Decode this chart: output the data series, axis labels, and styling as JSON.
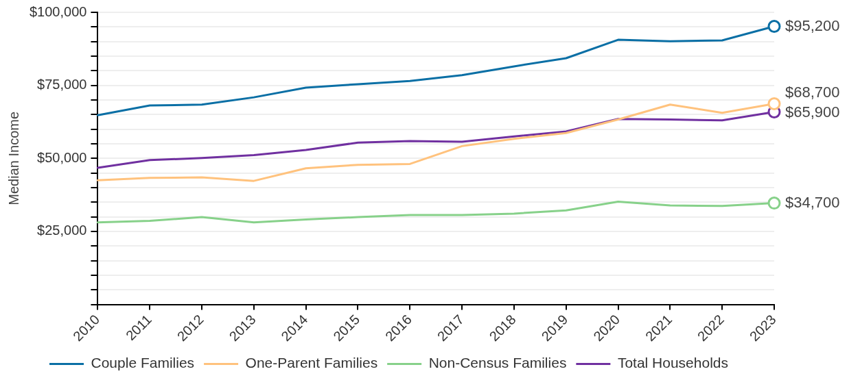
{
  "chart_data": {
    "type": "line",
    "ylabel": "Median Income",
    "categories": [
      "2010",
      "2011",
      "2012",
      "2013",
      "2014",
      "2015",
      "2016",
      "2017",
      "2018",
      "2019",
      "2020",
      "2021",
      "2022",
      "2023"
    ],
    "series": [
      {
        "name": "Couple Families",
        "color": "#0a6fa5",
        "values": [
          64800,
          68100,
          68400,
          70900,
          74200,
          75400,
          76500,
          78500,
          81500,
          84300,
          90600,
          90100,
          90400,
          95200
        ],
        "value_labels": [
          null,
          null,
          null,
          null,
          null,
          null,
          null,
          null,
          null,
          null,
          null,
          null,
          null,
          "$95,200"
        ]
      },
      {
        "name": "One-Parent Families",
        "color": "#ffc27d",
        "values": [
          42500,
          43300,
          43500,
          42300,
          46600,
          47800,
          48100,
          54200,
          56700,
          58700,
          63300,
          68400,
          65600,
          68700
        ],
        "value_labels": [
          null,
          null,
          null,
          null,
          null,
          null,
          null,
          null,
          null,
          null,
          null,
          null,
          null,
          "$68,700"
        ]
      },
      {
        "name": "Non-Census Families",
        "color": "#87d18a",
        "values": [
          28100,
          28600,
          29900,
          28100,
          29100,
          29900,
          30600,
          30600,
          31100,
          32200,
          35200,
          33900,
          33700,
          34700
        ],
        "value_labels": [
          null,
          null,
          null,
          null,
          null,
          null,
          null,
          null,
          null,
          null,
          null,
          null,
          null,
          "$34,700"
        ]
      },
      {
        "name": "Total Households",
        "color": "#7030a0",
        "values": [
          46800,
          49400,
          50100,
          51100,
          52900,
          55400,
          55900,
          55700,
          57500,
          59200,
          63500,
          63300,
          63000,
          65900
        ],
        "value_labels": [
          null,
          null,
          null,
          null,
          null,
          null,
          null,
          null,
          null,
          null,
          null,
          null,
          null,
          "$65,900"
        ]
      }
    ],
    "ylim": [
      0,
      100000
    ],
    "yticks": [
      {
        "value": 0,
        "label": null
      },
      {
        "value": 5000,
        "label": null
      },
      {
        "value": 10000,
        "label": null
      },
      {
        "value": 15000,
        "label": null
      },
      {
        "value": 20000,
        "label": null
      },
      {
        "value": 25000,
        "label": "$25,000"
      },
      {
        "value": 30000,
        "label": null
      },
      {
        "value": 35000,
        "label": null
      },
      {
        "value": 40000,
        "label": null
      },
      {
        "value": 45000,
        "label": null
      },
      {
        "value": 50000,
        "label": "$50,000"
      },
      {
        "value": 55000,
        "label": null
      },
      {
        "value": 60000,
        "label": null
      },
      {
        "value": 65000,
        "label": null
      },
      {
        "value": 70000,
        "label": null
      },
      {
        "value": 75000,
        "label": "$75,000"
      },
      {
        "value": 80000,
        "label": null
      },
      {
        "value": 85000,
        "label": null
      },
      {
        "value": 90000,
        "label": null
      },
      {
        "value": 95000,
        "label": null
      },
      {
        "value": 100000,
        "label": "$100,000"
      }
    ],
    "grid": "y",
    "legend": "bottom",
    "line_style": "solid"
  }
}
